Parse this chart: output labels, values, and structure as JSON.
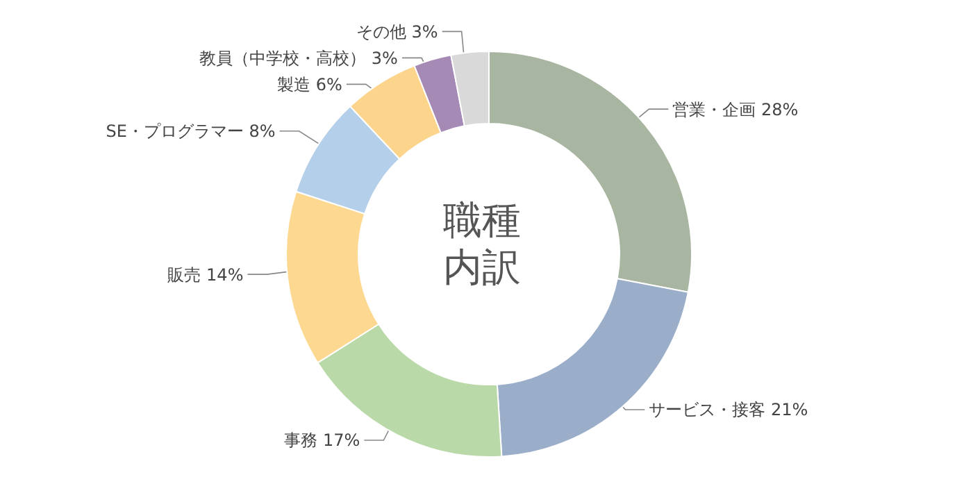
{
  "chart_data": {
    "type": "donut",
    "title": "職種内訳",
    "categories": [
      "営業・企画",
      "サービス・接客",
      "事務",
      "販売",
      "SE・プログラマー",
      "製造",
      "教員（中学校・高校）",
      "その他"
    ],
    "values": [
      28,
      21,
      17,
      14,
      8,
      6,
      3,
      3
    ],
    "value_labels": [
      "28%",
      "21%",
      "17%",
      "14%",
      "8%",
      "6%",
      "3%",
      "3%"
    ],
    "colors": [
      "#a8b5a0",
      "#9aaec9",
      "#b9d9a9",
      "#fdd890",
      "#b4cfea",
      "#fcd48c",
      "#a48ab5",
      "#d9d9d9"
    ]
  }
}
